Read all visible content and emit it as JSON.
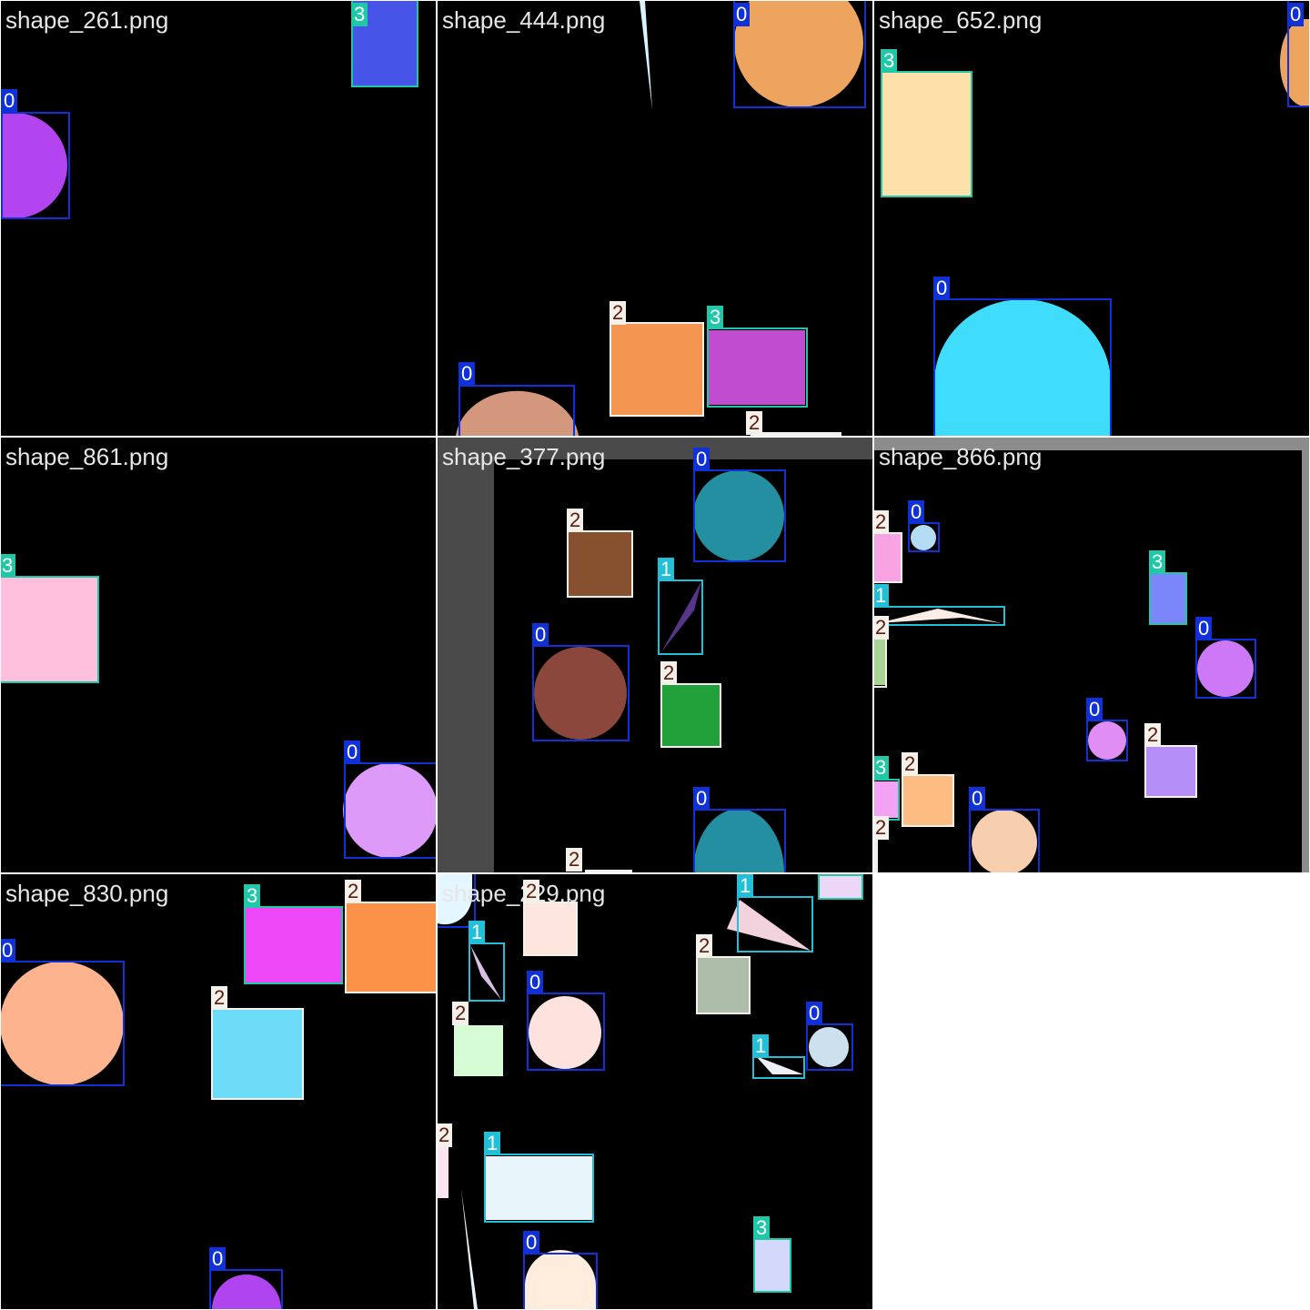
{
  "grid": {
    "tiles": [
      {
        "title": "shape_261.png"
      },
      {
        "title": "shape_444.png"
      },
      {
        "title": "shape_652.png"
      },
      {
        "title": "shape_861.png"
      },
      {
        "title": "shape_377.png"
      },
      {
        "title": "shape_866.png"
      },
      {
        "title": "shape_830.png"
      },
      {
        "title": "shape_229.png"
      }
    ]
  },
  "class_colors": {
    "0": {
      "box": "#1030d8",
      "label_bg": "#1030d8",
      "label_text": "#ffffff"
    },
    "1": {
      "box": "#22c0d8",
      "label_bg": "#22c0d8",
      "label_text": "#ffffff"
    },
    "2": {
      "box": "#f4f0ea",
      "label_bg": "#f4f0ea",
      "label_text": "#5a1a10"
    },
    "3": {
      "box": "#20c8a8",
      "label_bg": "#20c8a8",
      "label_text": "#ffffff"
    }
  },
  "labels": {
    "t0": [
      "3",
      "0"
    ],
    "t1": [
      "0",
      "2",
      "3",
      "0",
      "2"
    ],
    "t2": [
      "0",
      "3",
      "0"
    ],
    "t3": [
      "3",
      "0"
    ],
    "t4": [
      "0",
      "2",
      "1",
      "0",
      "2",
      "0",
      "2"
    ],
    "t5": [
      "2",
      "0",
      "1",
      "2",
      "3",
      "0",
      "0",
      "2",
      "3",
      "2",
      "0",
      "2"
    ],
    "t6": [
      "3",
      "2",
      "0",
      "2",
      "0"
    ],
    "t7": [
      "0",
      "2",
      "1",
      "1",
      "0",
      "2",
      "2",
      "0",
      "1",
      "2",
      "1",
      "0",
      "3",
      "3"
    ]
  }
}
